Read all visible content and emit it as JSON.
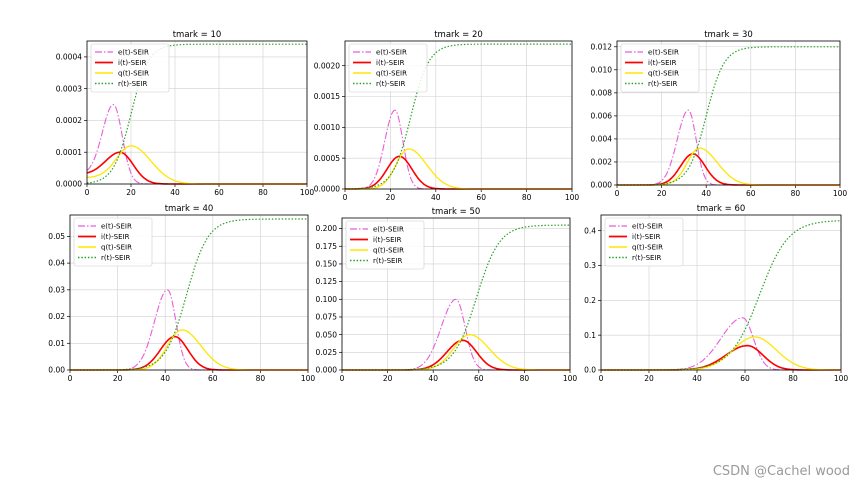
{
  "watermark": "CSDN @Cachel wood",
  "colors": {
    "e": "#e65fd8",
    "i": "#ff0000",
    "q": "#ffe600",
    "r": "#2ca02c",
    "grid": "#d0d0d0",
    "axis": "#000000"
  },
  "legend_labels": [
    "e(t)-SEIR",
    "i(t)-SEIR",
    "q(t)-SEIR",
    "r(t)-SEIR"
  ],
  "chart_data": [
    {
      "type": "line",
      "title": "tmark = 10",
      "xlim": [
        0,
        100
      ],
      "ylim": [
        0,
        0.00045
      ],
      "xticks": [
        0,
        20,
        40,
        60,
        80,
        100
      ],
      "yticks": [
        "0.0000",
        "0.0001",
        "0.0002",
        "0.0003",
        "0.0004"
      ],
      "ytick_values": [
        0,
        0.0001,
        0.0002,
        0.0003,
        0.0004
      ],
      "legend": "top-left",
      "grid": true,
      "series": {
        "e": {
          "peak": 0.00025,
          "peak_x": 12,
          "rise": 5.0,
          "fall": 4.0,
          "base": 3e-05
        },
        "i": {
          "peak": 0.0001,
          "peak_x": 15,
          "rise": 6.5,
          "fall": 6.0,
          "base": 3e-05
        },
        "q": {
          "peak": 0.00012,
          "peak_x": 20,
          "rise": 6.5,
          "fall": 9.0,
          "base": 2e-05
        },
        "r": {
          "max": 0.00044,
          "mid": 20,
          "scale": 4.0
        }
      }
    },
    {
      "type": "line",
      "title": "tmark = 20",
      "xlim": [
        0,
        100
      ],
      "ylim": [
        0,
        0.0024
      ],
      "xticks": [
        0,
        20,
        40,
        60,
        80,
        100
      ],
      "yticks": [
        "0.0000",
        "0.0005",
        "0.0010",
        "0.0015",
        "0.0020"
      ],
      "ytick_values": [
        0,
        0.0005,
        0.001,
        0.0015,
        0.002
      ],
      "legend": "top-left",
      "grid": true,
      "series": {
        "e": {
          "peak": 0.00128,
          "peak_x": 22,
          "rise": 4.5,
          "fall": 3.5,
          "base": 0.0
        },
        "i": {
          "peak": 0.00053,
          "peak_x": 24,
          "rise": 5.5,
          "fall": 5.5,
          "base": 0.0
        },
        "q": {
          "peak": 0.00065,
          "peak_x": 28,
          "rise": 5.5,
          "fall": 8.0,
          "base": 0.0
        },
        "r": {
          "max": 0.00235,
          "mid": 29,
          "scale": 4.0
        }
      }
    },
    {
      "type": "line",
      "title": "tmark = 30",
      "xlim": [
        0,
        100
      ],
      "ylim": [
        0,
        0.0125
      ],
      "xticks": [
        0,
        20,
        40,
        60,
        80,
        100
      ],
      "yticks": [
        "0.000",
        "0.002",
        "0.004",
        "0.006",
        "0.008",
        "0.010",
        "0.012"
      ],
      "ytick_values": [
        0,
        0.002,
        0.004,
        0.006,
        0.008,
        0.01,
        0.012
      ],
      "legend": "top-left",
      "grid": true,
      "series": {
        "e": {
          "peak": 0.0065,
          "peak_x": 32,
          "rise": 5.0,
          "fall": 3.5,
          "base": 0.0
        },
        "i": {
          "peak": 0.0027,
          "peak_x": 34,
          "rise": 5.5,
          "fall": 5.5,
          "base": 0.0
        },
        "q": {
          "peak": 0.0032,
          "peak_x": 37,
          "rise": 5.5,
          "fall": 8.0,
          "base": 0.0
        },
        "r": {
          "max": 0.012,
          "mid": 40,
          "scale": 4.0
        }
      }
    },
    {
      "type": "line",
      "title": "tmark = 40",
      "xlim": [
        0,
        100
      ],
      "ylim": [
        0,
        0.058
      ],
      "xticks": [
        0,
        20,
        40,
        60,
        80,
        100
      ],
      "yticks": [
        "0.00",
        "0.01",
        "0.02",
        "0.03",
        "0.04",
        "0.05"
      ],
      "ytick_values": [
        0,
        0.01,
        0.02,
        0.03,
        0.04,
        0.05
      ],
      "legend": "top-left",
      "grid": true,
      "series": {
        "e": {
          "peak": 0.03,
          "peak_x": 41,
          "rise": 5.5,
          "fall": 3.5,
          "base": 0.0
        },
        "i": {
          "peak": 0.0125,
          "peak_x": 44,
          "rise": 6.0,
          "fall": 5.5,
          "base": 0.0
        },
        "q": {
          "peak": 0.015,
          "peak_x": 47,
          "rise": 6.0,
          "fall": 8.0,
          "base": 0.0
        },
        "r": {
          "max": 0.0565,
          "mid": 49,
          "scale": 4.5
        }
      }
    },
    {
      "type": "line",
      "title": "tmark = 50",
      "xlim": [
        0,
        100
      ],
      "ylim": [
        0,
        0.215
      ],
      "xticks": [
        0,
        20,
        40,
        60,
        80,
        100
      ],
      "yticks": [
        "0.000",
        "0.025",
        "0.050",
        "0.075",
        "0.100",
        "0.125",
        "0.150",
        "0.175",
        "0.200"
      ],
      "ytick_values": [
        0,
        0.025,
        0.05,
        0.075,
        0.1,
        0.125,
        0.15,
        0.175,
        0.2
      ],
      "legend": "top-left",
      "grid": true,
      "series": {
        "e": {
          "peak": 0.1,
          "peak_x": 50,
          "rise": 6.5,
          "fall": 4.0,
          "base": 0.0
        },
        "i": {
          "peak": 0.042,
          "peak_x": 53,
          "rise": 7.0,
          "fall": 6.0,
          "base": 0.0
        },
        "q": {
          "peak": 0.05,
          "peak_x": 56,
          "rise": 7.0,
          "fall": 8.5,
          "base": 0.0
        },
        "r": {
          "max": 0.205,
          "mid": 59,
          "scale": 5.0
        }
      }
    },
    {
      "type": "line",
      "title": "tmark = 60",
      "xlim": [
        0,
        100
      ],
      "ylim": [
        0,
        0.445
      ],
      "xticks": [
        0,
        20,
        40,
        60,
        80,
        100
      ],
      "yticks": [
        "0.0",
        "0.1",
        "0.2",
        "0.3",
        "0.4"
      ],
      "ytick_values": [
        0,
        0.1,
        0.2,
        0.3,
        0.4
      ],
      "legend": "top-left",
      "grid": true,
      "series": {
        "e": {
          "peak": 0.15,
          "peak_x": 59,
          "rise": 9.0,
          "fall": 4.5,
          "base": 0.0
        },
        "i": {
          "peak": 0.07,
          "peak_x": 61,
          "rise": 9.0,
          "fall": 6.5,
          "base": 0.0
        },
        "q": {
          "peak": 0.095,
          "peak_x": 64,
          "rise": 9.0,
          "fall": 9.0,
          "base": 0.0
        },
        "r": {
          "max": 0.43,
          "mid": 66,
          "scale": 6.0
        }
      }
    }
  ]
}
